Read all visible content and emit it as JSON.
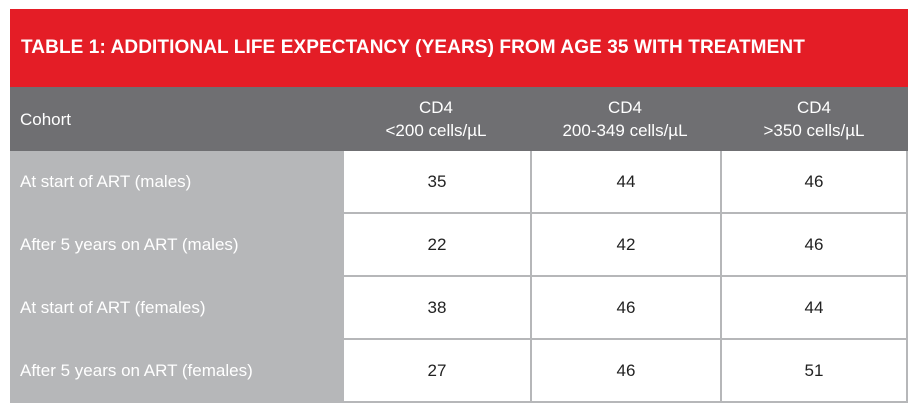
{
  "table": {
    "title": "TABLE 1: ADDITIONAL LIFE EXPECTANCY (YEARS) FROM AGE 35 WITH TREATMENT",
    "colors": {
      "title_bg": "#e41d26",
      "header_bg": "#6f6f72",
      "label_bg": "#b6b7b9"
    },
    "headers": {
      "cohort": "Cohort",
      "columns": [
        {
          "line1": "CD4",
          "line2": "<200 cells/µL"
        },
        {
          "line1": "CD4",
          "line2": "200-349 cells/µL"
        },
        {
          "line1": "CD4",
          "line2": ">350 cells/µL"
        }
      ]
    },
    "rows": [
      {
        "label": "At start of ART (males)",
        "values": [
          "35",
          "44",
          "46"
        ]
      },
      {
        "label": "After 5 years on ART (males)",
        "values": [
          "22",
          "42",
          "46"
        ]
      },
      {
        "label": "At start of ART (females)",
        "values": [
          "38",
          "46",
          "44"
        ]
      },
      {
        "label": "After 5 years on ART (females)",
        "values": [
          "27",
          "46",
          "51"
        ]
      }
    ]
  }
}
